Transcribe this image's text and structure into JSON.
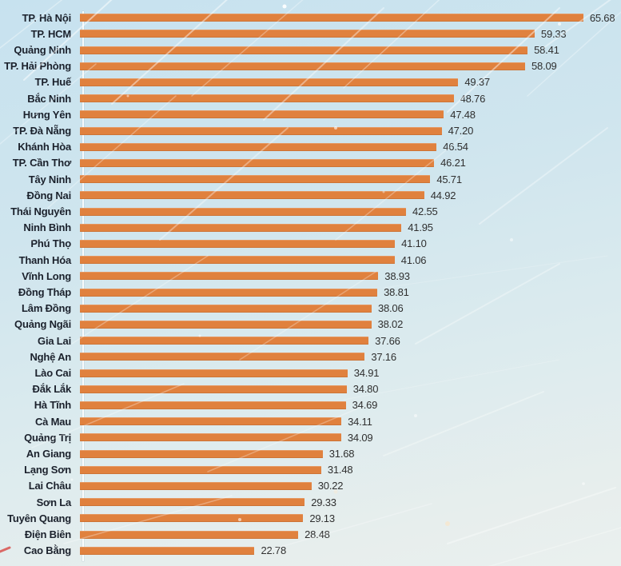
{
  "chart_data": {
    "type": "bar",
    "orientation": "horizontal",
    "title": "",
    "xlabel": "",
    "ylabel": "",
    "xlim": [
      0,
      70.6
    ],
    "grid": false,
    "legend": "none",
    "categories": [
      "TP. Hà Nội",
      "TP. HCM",
      "Quảng Ninh",
      "TP. Hải Phòng",
      "TP. Huế",
      "Bắc Ninh",
      "Hưng Yên",
      "TP. Đà Nẵng",
      "Khánh Hòa",
      "TP. Cần Thơ",
      "Tây Ninh",
      "Đồng Nai",
      "Thái Nguyên",
      "Ninh Bình",
      "Phú Thọ",
      "Thanh Hóa",
      "Vĩnh Long",
      "Đồng Tháp",
      "Lâm Đồng",
      "Quảng Ngãi",
      "Gia Lai",
      "Nghệ An",
      "Lào Cai",
      "Đắk Lắk",
      "Hà Tĩnh",
      "Cà Mau",
      "Quảng Trị",
      "An Giang",
      "Lạng Sơn",
      "Lai Châu",
      "Sơn La",
      "Tuyên Quang",
      "Điện Biên",
      "Cao Bằng"
    ],
    "values": [
      65.68,
      59.33,
      58.41,
      58.09,
      49.37,
      48.76,
      47.48,
      47.2,
      46.54,
      46.21,
      45.71,
      44.92,
      42.55,
      41.95,
      41.1,
      41.06,
      38.93,
      38.81,
      38.06,
      38.02,
      37.66,
      37.16,
      34.91,
      34.8,
      34.69,
      34.11,
      34.09,
      31.68,
      31.48,
      30.22,
      29.33,
      29.13,
      28.48,
      22.78
    ],
    "value_labels": [
      "65.68",
      "59.33",
      "58.41",
      "58.09",
      "49.37",
      "48.76",
      "47.48",
      "47.20",
      "46.54",
      "46.21",
      "45.71",
      "44.92",
      "42.55",
      "41.95",
      "41.10",
      "41.06",
      "38.93",
      "38.81",
      "38.06",
      "38.02",
      "37.66",
      "37.16",
      "34.91",
      "34.80",
      "34.69",
      "34.11",
      "34.09",
      "31.68",
      "31.48",
      "30.22",
      "29.33",
      "29.13",
      "28.48",
      "22.78"
    ],
    "colors": {
      "bar": "#E0813E",
      "category_label": "#1B212C",
      "value_label": "#2F2F2F",
      "axis_line": "#FFFFFF",
      "background_top": "#C7E2EF",
      "background_bottom": "#EAF0EE",
      "rays": "#FFFFFF"
    }
  }
}
